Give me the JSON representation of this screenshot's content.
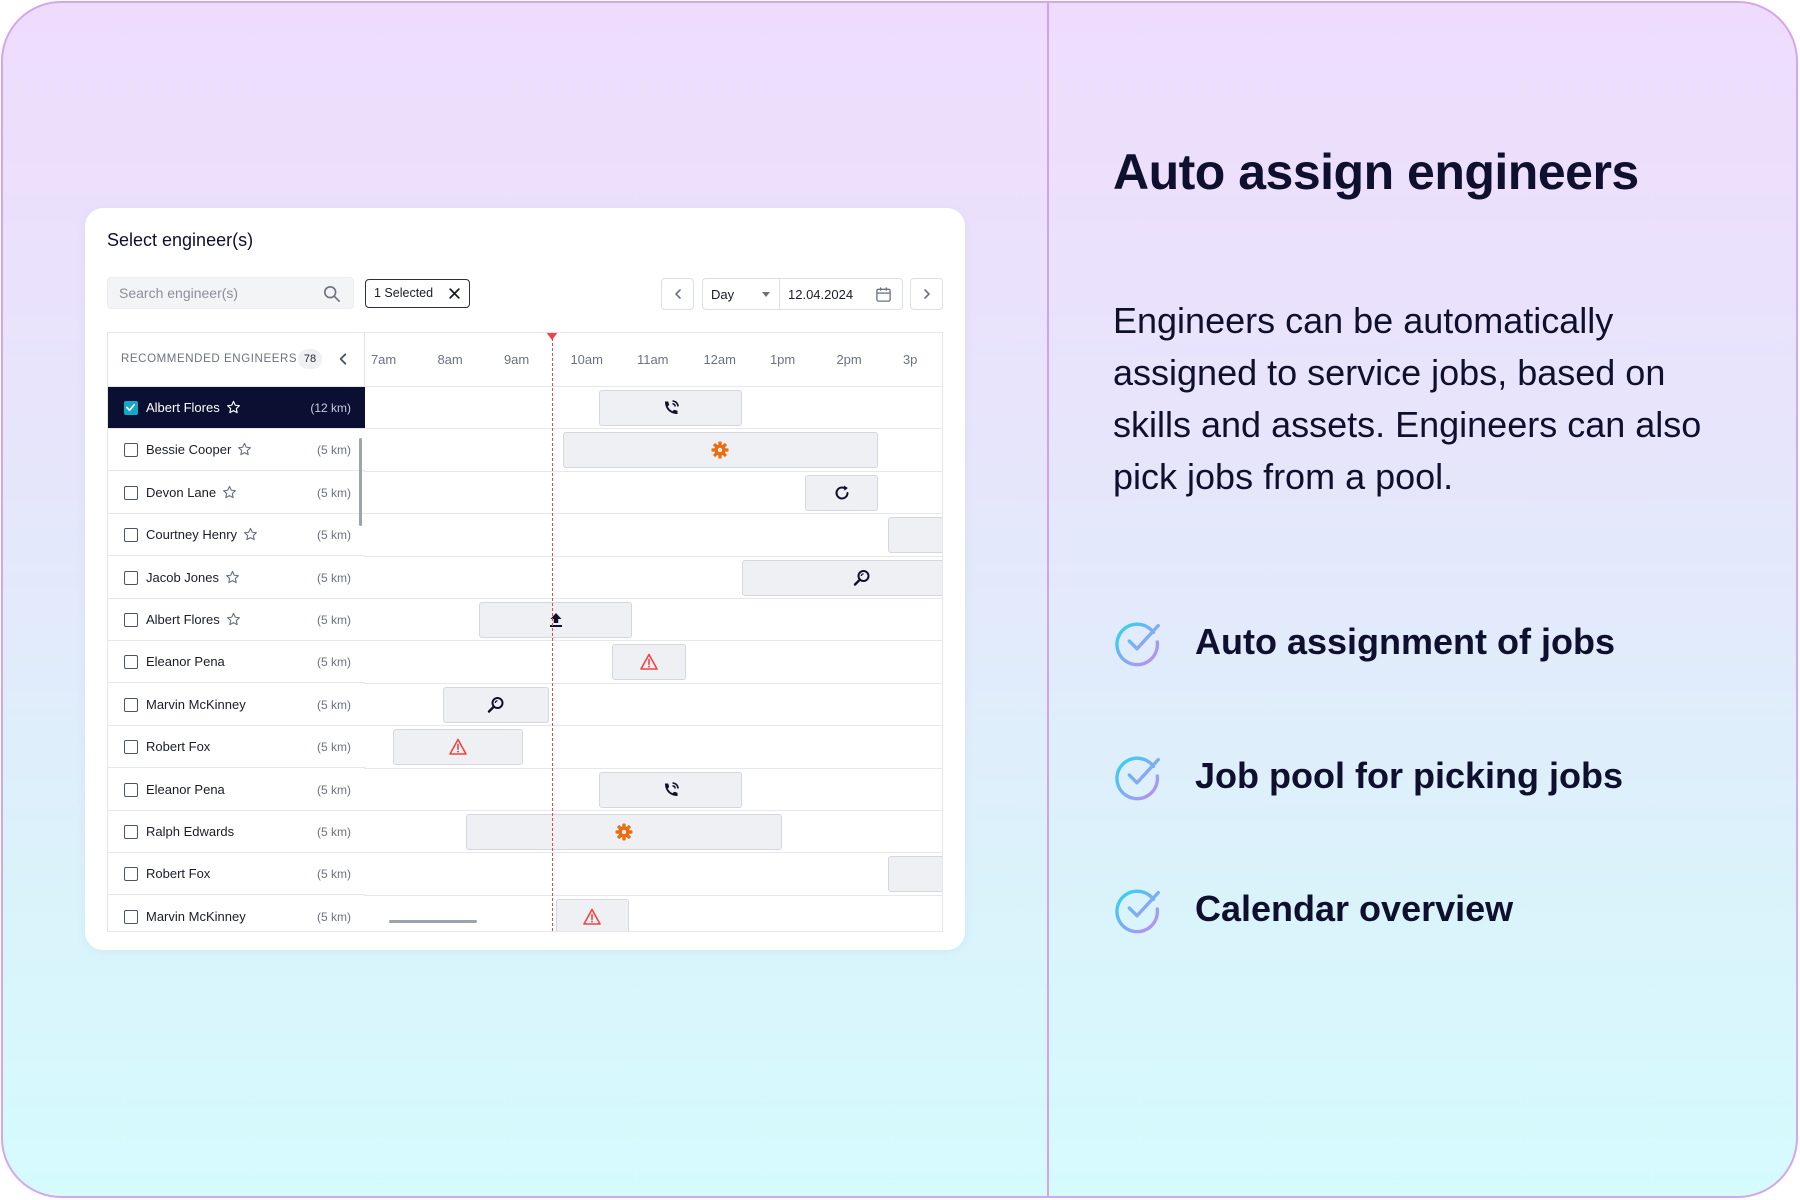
{
  "card": {
    "title": "Select engineer(s)",
    "search_placeholder": "Search engineer(s)",
    "selected_chip": "1 Selected",
    "view": "Day",
    "date": "12.04.2024"
  },
  "list_header": {
    "title": "RECOMMENDED ENGINEERS",
    "count": "78"
  },
  "engineers": [
    {
      "name": "Albert Flores",
      "distance": "(12 km)",
      "starred": true,
      "selected": true
    },
    {
      "name": "Bessie Cooper",
      "distance": "(5 km)",
      "starred": true,
      "selected": false
    },
    {
      "name": "Devon Lane",
      "distance": "(5 km)",
      "starred": true,
      "selected": false
    },
    {
      "name": "Courtney Henry",
      "distance": "(5 km)",
      "starred": true,
      "selected": false
    },
    {
      "name": "Jacob Jones",
      "distance": "(5 km)",
      "starred": true,
      "selected": false
    },
    {
      "name": "Albert Flores",
      "distance": "(5 km)",
      "starred": true,
      "selected": false
    },
    {
      "name": "Eleanor Pena",
      "distance": "(5 km)",
      "starred": false,
      "selected": false
    },
    {
      "name": "Marvin McKinney",
      "distance": "(5 km)",
      "starred": false,
      "selected": false
    },
    {
      "name": "Robert Fox",
      "distance": "(5 km)",
      "starred": false,
      "selected": false
    },
    {
      "name": "Eleanor Pena",
      "distance": "(5 km)",
      "starred": false,
      "selected": false
    },
    {
      "name": "Ralph Edwards",
      "distance": "(5 km)",
      "starred": false,
      "selected": false
    },
    {
      "name": "Robert Fox",
      "distance": "(5 km)",
      "starred": false,
      "selected": false
    },
    {
      "name": "Marvin McKinney",
      "distance": "(5 km)",
      "starred": false,
      "selected": false
    }
  ],
  "timeline": {
    "hours": [
      "7am",
      "8am",
      "9am",
      "10am",
      "11am",
      "12am",
      "1pm",
      "2pm",
      "3p"
    ],
    "now_time": "9:15am",
    "jobs": [
      {
        "row": 0,
        "start": 10.25,
        "end": 12.4,
        "icon": "phone-icon"
      },
      {
        "row": 1,
        "start": 9.7,
        "end": 14.45,
        "icon": "gear-icon"
      },
      {
        "row": 2,
        "start": 13.35,
        "end": 14.45,
        "icon": "refresh-icon"
      },
      {
        "row": 3,
        "start": 14.6,
        "end": 16.0,
        "icon": ""
      },
      {
        "row": 4,
        "start": 12.4,
        "end": 16.0,
        "icon": "search-zoom-icon"
      },
      {
        "row": 5,
        "start": 8.45,
        "end": 10.75,
        "icon": "upload-icon"
      },
      {
        "row": 6,
        "start": 10.45,
        "end": 11.55,
        "icon": "warning-icon"
      },
      {
        "row": 7,
        "start": 7.9,
        "end": 9.5,
        "icon": "search-zoom-icon"
      },
      {
        "row": 8,
        "start": 7.15,
        "end": 9.1,
        "icon": "warning-icon"
      },
      {
        "row": 9,
        "start": 10.25,
        "end": 12.4,
        "icon": "phone-icon"
      },
      {
        "row": 10,
        "start": 8.25,
        "end": 13.0,
        "icon": "gear-icon"
      },
      {
        "row": 11,
        "start": 14.6,
        "end": 16.0,
        "icon": ""
      },
      {
        "row": 12,
        "start": 9.6,
        "end": 10.7,
        "icon": "warning-icon"
      }
    ]
  },
  "panel": {
    "headline": "Auto assign engineers",
    "description": "Engineers can be automatically assigned to service jobs, based on skills and assets. Engineers can also pick jobs from a pool.",
    "features": [
      "Auto assignment of jobs",
      "Job pool for picking jobs",
      "Calendar overview"
    ]
  },
  "colors": {
    "accent": "#13a8c7",
    "selected_row": "#0b1033",
    "warning": "#ef4444",
    "gear": "#ea6c0c",
    "now_line": "#ef4444"
  }
}
